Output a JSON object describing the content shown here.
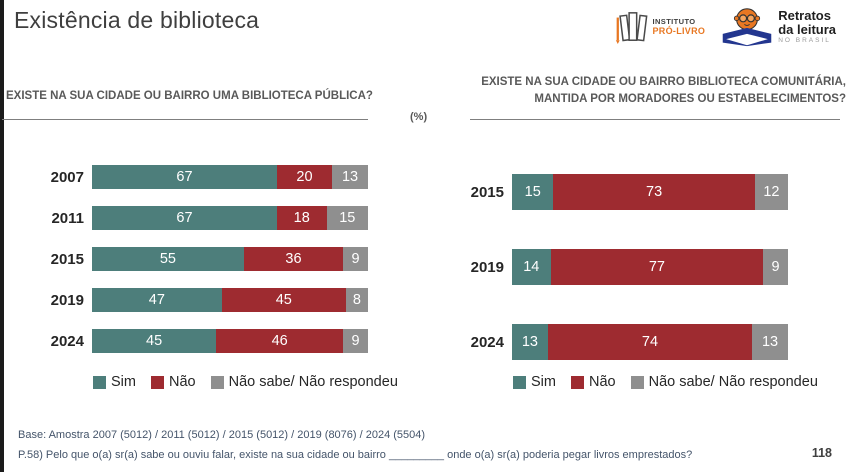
{
  "slide": {
    "title": "Existência de biblioteca",
    "percent_label": "(%)",
    "page_number": "118"
  },
  "logos": {
    "instituto": {
      "line1": "INSTITUTO",
      "line2": "PRÓ-LIVRO"
    },
    "retratos": {
      "line1": "Retratos",
      "line2": "da leitura",
      "line3": "NO BRASIL"
    }
  },
  "colors": {
    "sim": "#4D7E7B",
    "nao": "#9E2B30",
    "nao_sabe": "#8F8F8F",
    "accent_orange": "#E87722",
    "logo_navy": "#23368F"
  },
  "legend": [
    {
      "label": "Sim",
      "color": "#4D7E7B"
    },
    {
      "label": "Não",
      "color": "#9E2B30"
    },
    {
      "label": "Não sabe/ Não respondeu",
      "color": "#8F8F8F"
    }
  ],
  "chart_data": [
    {
      "type": "bar",
      "orientation": "horizontal-stacked",
      "title": "EXISTE NA SUA CIDADE OU BAIRRO UMA BIBLIOTECA PÚBLICA?",
      "unit": "%",
      "categories": [
        "2007",
        "2011",
        "2015",
        "2019",
        "2024"
      ],
      "series": [
        {
          "name": "Sim",
          "color": "#4D7E7B",
          "values": [
            67,
            67,
            55,
            47,
            45
          ]
        },
        {
          "name": "Não",
          "color": "#9E2B30",
          "values": [
            20,
            18,
            36,
            45,
            46
          ]
        },
        {
          "name": "Não sabe/ Não respondeu",
          "color": "#8F8F8F",
          "values": [
            13,
            15,
            9,
            8,
            9
          ]
        }
      ],
      "xlim": [
        0,
        100
      ],
      "grid": false,
      "legend_position": "bottom"
    },
    {
      "type": "bar",
      "orientation": "horizontal-stacked",
      "title": "EXISTE NA SUA CIDADE OU BAIRRO BIBLIOTECA COMUNITÁRIA, MANTIDA POR MORADORES OU ESTABELECIMENTOS?",
      "unit": "%",
      "categories": [
        "2015",
        "2019",
        "2024"
      ],
      "series": [
        {
          "name": "Sim",
          "color": "#4D7E7B",
          "values": [
            15,
            14,
            13
          ]
        },
        {
          "name": "Não",
          "color": "#9E2B30",
          "values": [
            73,
            77,
            74
          ]
        },
        {
          "name": "Não sabe/ Não respondeu",
          "color": "#8F8F8F",
          "values": [
            12,
            9,
            13
          ]
        }
      ],
      "xlim": [
        0,
        100
      ],
      "grid": false,
      "legend_position": "bottom"
    }
  ],
  "footer": {
    "base": "Base: Amostra 2007 (5012) / 2011 (5012) / 2015 (5012) / 2019 (8076) / 2024 (5504)",
    "note": "P.58) Pelo que o(a) sr(a) sabe ou ouviu falar, existe na sua cidade ou bairro _________ onde o(a) sr(a) poderia pegar livros emprestados?"
  }
}
